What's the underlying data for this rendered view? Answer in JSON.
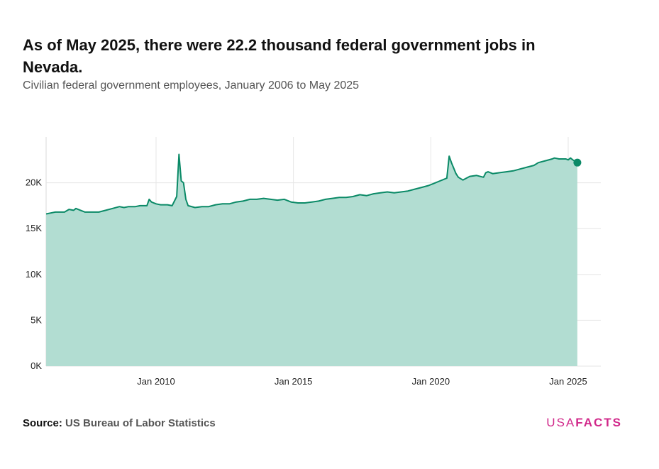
{
  "title": "As of May 2025, there were 22.2 thousand federal government jobs in Nevada.",
  "subtitle": "Civilian federal government employees, January 2006 to May 2025",
  "source": {
    "label": "Source:",
    "value": "US Bureau of Labor Statistics"
  },
  "logo": {
    "part1": "USA",
    "part2": "FACTS"
  },
  "colors": {
    "fill": "#b2ddd2",
    "line": "#0b8a67",
    "marker": "#0b8a67",
    "grid": "#e6e6e6",
    "logo": "#d1288a"
  },
  "chart_data": {
    "type": "area",
    "title": "As of May 2025, there were 22.2 thousand federal government jobs in Nevada.",
    "subtitle": "Civilian federal government employees, January 2006 to May 2025",
    "xlabel": "",
    "ylabel": "",
    "x_range": [
      "2006-01",
      "2025-05"
    ],
    "ylim": [
      0,
      25000
    ],
    "y_ticks": [
      0,
      5000,
      10000,
      15000,
      20000
    ],
    "y_tick_labels": [
      "0K",
      "5K",
      "10K",
      "15K",
      "20K"
    ],
    "x_ticks": [
      "2010-01",
      "2015-01",
      "2020-01",
      "2025-01"
    ],
    "x_tick_labels": [
      "Jan 2010",
      "Jan 2015",
      "Jan 2020",
      "Jan 2025"
    ],
    "grid": true,
    "legend": "none",
    "highlight_last_point": true,
    "series": [
      {
        "points": [
          [
            "2006-01",
            16600
          ],
          [
            "2006-03",
            16700
          ],
          [
            "2006-05",
            16800
          ],
          [
            "2006-07",
            16800
          ],
          [
            "2006-09",
            16800
          ],
          [
            "2006-11",
            17100
          ],
          [
            "2007-01",
            17000
          ],
          [
            "2007-02",
            17200
          ],
          [
            "2007-04",
            17000
          ],
          [
            "2007-06",
            16800
          ],
          [
            "2007-09",
            16800
          ],
          [
            "2007-12",
            16800
          ],
          [
            "2008-03",
            17000
          ],
          [
            "2008-06",
            17200
          ],
          [
            "2008-09",
            17400
          ],
          [
            "2008-11",
            17300
          ],
          [
            "2009-01",
            17400
          ],
          [
            "2009-04",
            17400
          ],
          [
            "2009-06",
            17500
          ],
          [
            "2009-09",
            17500
          ],
          [
            "2009-10",
            18200
          ],
          [
            "2009-11",
            17900
          ],
          [
            "2010-01",
            17700
          ],
          [
            "2010-03",
            17600
          ],
          [
            "2010-06",
            17600
          ],
          [
            "2010-08",
            17500
          ],
          [
            "2010-10",
            18500
          ],
          [
            "2010-11",
            23100
          ],
          [
            "2010-12",
            20200
          ],
          [
            "2011-01",
            20000
          ],
          [
            "2011-02",
            18200
          ],
          [
            "2011-03",
            17500
          ],
          [
            "2011-06",
            17300
          ],
          [
            "2011-09",
            17400
          ],
          [
            "2011-12",
            17400
          ],
          [
            "2012-03",
            17600
          ],
          [
            "2012-06",
            17700
          ],
          [
            "2012-09",
            17700
          ],
          [
            "2012-12",
            17900
          ],
          [
            "2013-03",
            18000
          ],
          [
            "2013-06",
            18200
          ],
          [
            "2013-09",
            18200
          ],
          [
            "2013-12",
            18300
          ],
          [
            "2014-03",
            18200
          ],
          [
            "2014-06",
            18100
          ],
          [
            "2014-09",
            18200
          ],
          [
            "2014-12",
            17900
          ],
          [
            "2015-03",
            17800
          ],
          [
            "2015-06",
            17800
          ],
          [
            "2015-09",
            17900
          ],
          [
            "2015-12",
            18000
          ],
          [
            "2016-03",
            18200
          ],
          [
            "2016-06",
            18300
          ],
          [
            "2016-09",
            18400
          ],
          [
            "2016-12",
            18400
          ],
          [
            "2017-03",
            18500
          ],
          [
            "2017-06",
            18700
          ],
          [
            "2017-09",
            18600
          ],
          [
            "2017-12",
            18800
          ],
          [
            "2018-03",
            18900
          ],
          [
            "2018-06",
            19000
          ],
          [
            "2018-09",
            18900
          ],
          [
            "2018-12",
            19000
          ],
          [
            "2019-03",
            19100
          ],
          [
            "2019-06",
            19300
          ],
          [
            "2019-09",
            19500
          ],
          [
            "2019-12",
            19700
          ],
          [
            "2020-02",
            19900
          ],
          [
            "2020-05",
            20200
          ],
          [
            "2020-08",
            20500
          ],
          [
            "2020-09",
            22900
          ],
          [
            "2020-10",
            22200
          ],
          [
            "2020-12",
            21000
          ],
          [
            "2021-01",
            20600
          ],
          [
            "2021-03",
            20300
          ],
          [
            "2021-06",
            20700
          ],
          [
            "2021-09",
            20800
          ],
          [
            "2021-12",
            20600
          ],
          [
            "2022-01",
            21100
          ],
          [
            "2022-02",
            21200
          ],
          [
            "2022-04",
            21000
          ],
          [
            "2022-07",
            21100
          ],
          [
            "2022-10",
            21200
          ],
          [
            "2023-01",
            21300
          ],
          [
            "2023-04",
            21500
          ],
          [
            "2023-07",
            21700
          ],
          [
            "2023-10",
            21900
          ],
          [
            "2023-12",
            22200
          ],
          [
            "2024-03",
            22400
          ],
          [
            "2024-06",
            22600
          ],
          [
            "2024-07",
            22700
          ],
          [
            "2024-09",
            22600
          ],
          [
            "2024-12",
            22600
          ],
          [
            "2025-01",
            22500
          ],
          [
            "2025-02",
            22700
          ],
          [
            "2025-03",
            22500
          ],
          [
            "2025-05",
            22200
          ]
        ]
      }
    ]
  }
}
